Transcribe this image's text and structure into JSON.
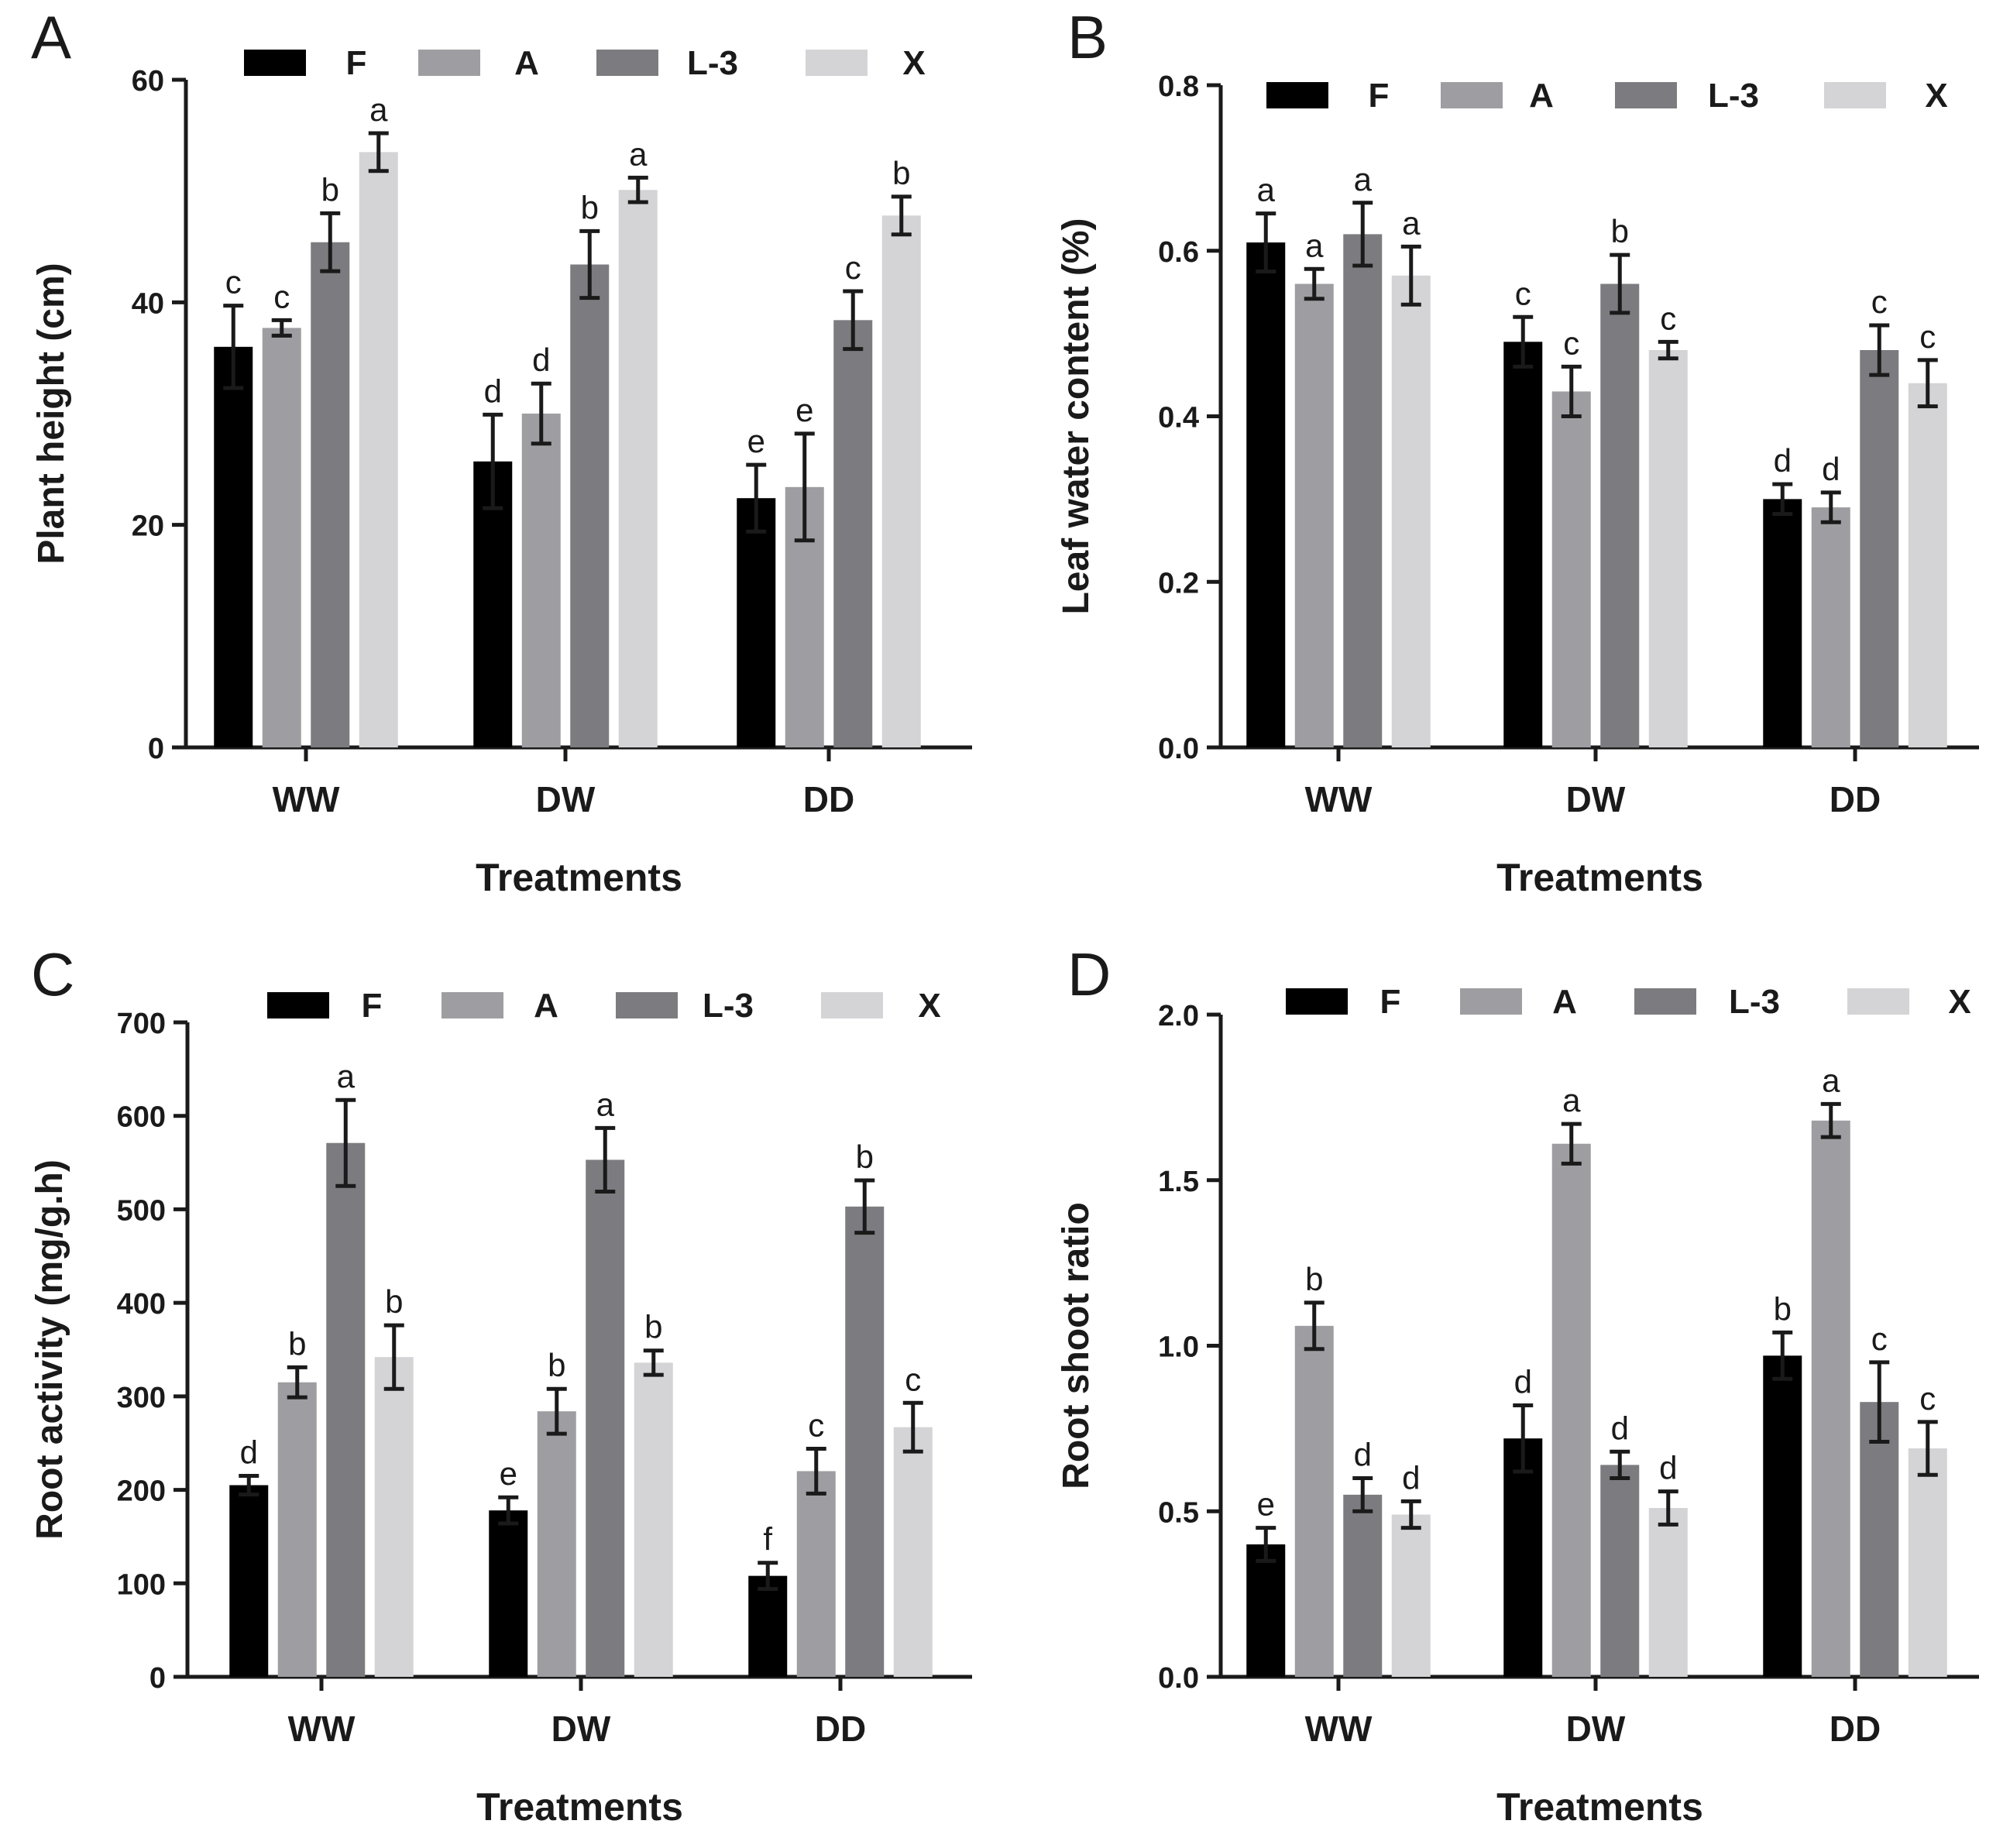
{
  "chart_data": [
    {
      "panel": "A",
      "type": "bar",
      "xlabel": "Treatments",
      "ylabel": "Plant height (cm)",
      "ylim": [
        0,
        60
      ],
      "yticks": [
        "0",
        "20",
        "40",
        "60"
      ],
      "categories": [
        "WW",
        "DW",
        "DD"
      ],
      "series": [
        {
          "name": "F",
          "color": "#000000",
          "values": [
            36,
            25.7,
            22.4
          ],
          "errors": [
            3.7,
            4.2,
            3.0
          ],
          "letters": [
            "c",
            "d",
            "e"
          ]
        },
        {
          "name": "A",
          "color": "#9e9ea2",
          "values": [
            37.7,
            30,
            23.4
          ],
          "errors": [
            0.7,
            2.7,
            4.8
          ],
          "letters": [
            "c",
            "d",
            "e"
          ]
        },
        {
          "name": "L-3",
          "color": "#7c7c80",
          "values": [
            45.4,
            43.4,
            38.4
          ],
          "errors": [
            2.6,
            3.0,
            2.6
          ],
          "letters": [
            "b",
            "b",
            "c"
          ]
        },
        {
          "name": "X",
          "color": "#d4d4d6",
          "values": [
            53.5,
            50.1,
            47.8
          ],
          "errors": [
            1.7,
            1.1,
            1.7
          ],
          "letters": [
            "a",
            "a",
            "b"
          ]
        }
      ]
    },
    {
      "panel": "B",
      "type": "bar",
      "xlabel": "Treatments",
      "ylabel": "Leaf water content (%)",
      "ylim": [
        0,
        0.8
      ],
      "yticks": [
        "0.0",
        "0.2",
        "0.4",
        "0.6",
        "0.8"
      ],
      "categories": [
        "WW",
        "DW",
        "DD"
      ],
      "series": [
        {
          "name": "F",
          "color": "#000000",
          "values": [
            0.61,
            0.49,
            0.3
          ],
          "errors": [
            0.035,
            0.03,
            0.018
          ],
          "letters": [
            "a",
            "c",
            "d"
          ]
        },
        {
          "name": "A",
          "color": "#9e9ea2",
          "values": [
            0.56,
            0.43,
            0.29
          ],
          "errors": [
            0.018,
            0.03,
            0.018
          ],
          "letters": [
            "a",
            "c",
            "d"
          ]
        },
        {
          "name": "L-3",
          "color": "#7c7c80",
          "values": [
            0.62,
            0.56,
            0.48
          ],
          "errors": [
            0.038,
            0.035,
            0.03
          ],
          "letters": [
            "a",
            "b",
            "c"
          ]
        },
        {
          "name": "X",
          "color": "#d4d4d6",
          "values": [
            0.57,
            0.48,
            0.44
          ],
          "errors": [
            0.035,
            0.01,
            0.028
          ],
          "letters": [
            "a",
            "c",
            "c"
          ]
        }
      ]
    },
    {
      "panel": "C",
      "type": "bar",
      "xlabel": "Treatments",
      "ylabel": "Root activity (mg/g.h)",
      "ylim": [
        0,
        700
      ],
      "yticks": [
        "0",
        "100",
        "200",
        "300",
        "400",
        "500",
        "600",
        "700"
      ],
      "categories": [
        "WW",
        "DW",
        "DD"
      ],
      "series": [
        {
          "name": "F",
          "color": "#000000",
          "values": [
            205,
            178,
            108
          ],
          "errors": [
            10,
            14,
            14
          ],
          "letters": [
            "d",
            "e",
            "f"
          ]
        },
        {
          "name": "A",
          "color": "#9e9ea2",
          "values": [
            315,
            284,
            220
          ],
          "errors": [
            16,
            24,
            24
          ],
          "letters": [
            "b",
            "b",
            "c"
          ]
        },
        {
          "name": "L-3",
          "color": "#7c7c80",
          "values": [
            571,
            553,
            503
          ],
          "errors": [
            46,
            34,
            28
          ],
          "letters": [
            "a",
            "a",
            "b"
          ]
        },
        {
          "name": "X",
          "color": "#d4d4d6",
          "values": [
            342,
            336,
            267
          ],
          "errors": [
            34,
            13,
            26
          ],
          "letters": [
            "b",
            "b",
            "c"
          ]
        }
      ]
    },
    {
      "panel": "D",
      "type": "bar",
      "xlabel": "Treatments",
      "ylabel": "Root shoot ratio",
      "ylim": [
        0,
        2.0
      ],
      "yticks": [
        "0.0",
        "0.5",
        "1.0",
        "1.5",
        "2.0"
      ],
      "categories": [
        "WW",
        "DW",
        "DD"
      ],
      "series": [
        {
          "name": "F",
          "color": "#000000",
          "values": [
            0.4,
            0.72,
            0.97
          ],
          "errors": [
            0.05,
            0.1,
            0.07
          ],
          "letters": [
            "e",
            "d",
            "b"
          ]
        },
        {
          "name": "A",
          "color": "#9e9ea2",
          "values": [
            1.06,
            1.61,
            1.68
          ],
          "errors": [
            0.07,
            0.06,
            0.05
          ],
          "letters": [
            "b",
            "a",
            "a"
          ]
        },
        {
          "name": "L-3",
          "color": "#7c7c80",
          "values": [
            0.55,
            0.64,
            0.83
          ],
          "errors": [
            0.05,
            0.04,
            0.12
          ],
          "letters": [
            "d",
            "d",
            "c"
          ]
        },
        {
          "name": "X",
          "color": "#d4d4d6",
          "values": [
            0.49,
            0.51,
            0.69
          ],
          "errors": [
            0.04,
            0.05,
            0.08
          ],
          "letters": [
            "d",
            "d",
            "c"
          ]
        }
      ]
    }
  ]
}
